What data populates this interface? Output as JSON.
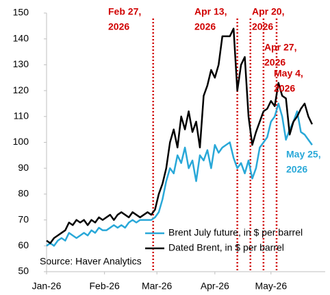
{
  "chart_data": {
    "type": "line",
    "x": [
      0,
      2,
      4,
      6,
      8,
      10,
      12,
      14,
      16,
      18,
      20,
      22,
      24,
      26,
      28,
      30,
      32,
      34,
      36,
      38,
      40,
      42,
      44,
      46,
      48,
      50,
      52,
      54,
      56,
      58,
      60,
      62,
      64,
      66,
      68,
      70,
      72,
      74,
      76,
      78,
      80,
      82,
      84,
      86,
      88,
      90,
      92,
      94,
      96,
      98,
      100,
      102,
      104,
      106,
      108,
      110,
      112,
      114,
      116,
      118,
      120,
      122,
      124,
      126,
      128,
      130,
      132,
      134,
      136,
      138,
      140,
      142
    ],
    "xlim": [
      0,
      149
    ],
    "xticks": [
      {
        "value": 0,
        "label": "Jan-26"
      },
      {
        "value": 31,
        "label": "Feb-26"
      },
      {
        "value": 59,
        "label": "Mar-26"
      },
      {
        "value": 90,
        "label": "Apr-26"
      },
      {
        "value": 120,
        "label": "May-26"
      }
    ],
    "ylim": [
      50,
      150
    ],
    "yticks": [
      50,
      60,
      70,
      80,
      90,
      100,
      110,
      120,
      130,
      140,
      150
    ],
    "series": [
      {
        "name": "Brent July future, in $ per barrel",
        "color": "#29a8d8",
        "values": [
          60,
          61,
          60,
          62,
          63,
          62,
          65,
          64,
          63,
          64,
          65,
          64,
          66,
          65,
          67,
          66,
          66,
          67,
          68,
          67,
          68,
          67,
          69,
          70,
          69,
          70,
          70,
          70,
          70,
          71,
          73,
          78,
          85,
          90,
          88,
          95,
          92,
          98,
          90,
          93,
          85,
          95,
          93,
          97,
          90,
          99,
          96,
          98,
          99,
          100,
          94,
          90,
          92,
          88,
          93,
          86,
          90,
          98,
          100,
          102,
          108,
          110,
          115,
          110,
          101,
          105,
          108,
          112,
          104,
          103,
          101,
          99
        ]
      },
      {
        "name": "Dated Brent, in $ per barrel",
        "color": "#000000",
        "values": [
          62,
          61,
          63,
          64,
          65,
          66,
          69,
          68,
          70,
          69,
          70,
          68,
          70,
          69,
          71,
          70,
          71,
          72,
          70,
          72,
          73,
          72,
          71,
          73,
          72,
          71,
          72,
          73,
          72,
          74,
          80,
          84,
          90,
          100,
          105,
          98,
          110,
          105,
          112,
          104,
          108,
          98,
          118,
          122,
          128,
          125,
          130,
          141,
          141,
          141,
          144,
          120,
          130,
          133,
          110,
          99,
          104,
          108,
          112,
          113,
          116,
          114,
          123,
          118,
          117,
          103,
          108,
          110,
          113,
          115,
          110,
          107
        ]
      }
    ],
    "vlines": [
      57,
      102,
      109,
      116,
      123
    ],
    "vline_color": "#d00000",
    "annotations": [
      {
        "lines": [
          "Feb 27,",
          "2026"
        ],
        "color": "#d00000"
      },
      {
        "lines": [
          "Apr 13,",
          "2026"
        ],
        "color": "#d00000"
      },
      {
        "lines": [
          "Apr 20,",
          "2026"
        ],
        "color": "#d00000"
      },
      {
        "lines": [
          "Apr 27,",
          "2026"
        ],
        "color": "#d00000"
      },
      {
        "lines": [
          "May 4,",
          "2026"
        ],
        "color": "#d00000"
      },
      {
        "lines": [
          "May 25,",
          "2026"
        ],
        "color": "#29a8d8"
      }
    ],
    "source": "Source: Haver Analytics"
  }
}
